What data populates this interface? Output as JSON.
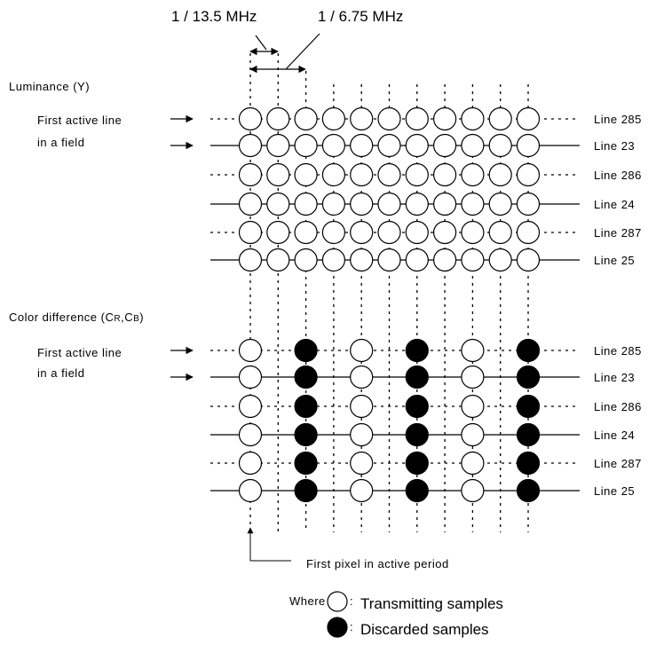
{
  "top_labels": {
    "period_13_5": "1 / 13.5 MHz",
    "period_6_75": "1 / 6.75 MHz"
  },
  "luminance": {
    "title": "Luminance (Y)",
    "first_active_line_1": "First active line",
    "first_active_line_2": "in a field",
    "lines": [
      "Line 285",
      "Line 23",
      "Line 286",
      "Line 24",
      "Line 287",
      "Line 25"
    ]
  },
  "color": {
    "title": "Color difference (",
    "cr_main": "C",
    "cr_sub": "R",
    "comma": ",",
    "cb_main": "C",
    "cb_sub": "B",
    "close": ")",
    "first_active_line_1": "First active line",
    "first_active_line_2": "in a field",
    "lines": [
      "Line 285",
      "Line 23",
      "Line 286",
      "Line 24",
      "Line 287",
      "Line 25"
    ],
    "sample_pattern": [
      "transmit",
      "discard",
      "transmit",
      "discard",
      "transmit",
      "discard"
    ]
  },
  "first_pixel_label": "First pixel in active period",
  "legend": {
    "where": "Where",
    "colon1": ":",
    "transmitting": "Transmitting samples",
    "colon2": ":",
    "discarded": "Discarded samples"
  },
  "colors": {
    "stroke": "#000000",
    "transmit_fill": "#ffffff",
    "discard_fill": "#000000"
  }
}
